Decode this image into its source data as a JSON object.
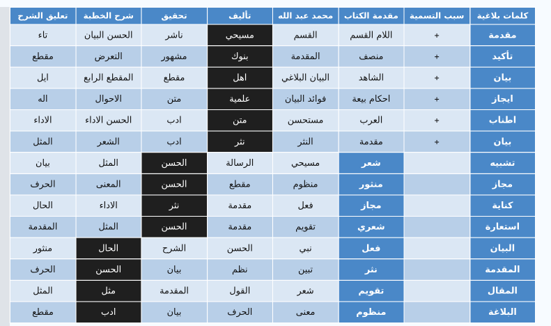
{
  "table": {
    "headers": [
      "كلمات بلاغية",
      "سبب التسمية",
      "مقدمة الكتاب",
      "محمد عبد الله",
      "تأليف",
      "تحقيق",
      "شرح الخطبة",
      "تعليق الشرح"
    ],
    "rows": [
      [
        "مقدمة",
        "+",
        "اللام القسم",
        "القسم",
        "مسيحي",
        "ناشر",
        "الحسن البيان",
        "تاء"
      ],
      [
        "تأكيد",
        "+",
        "منصف",
        "المقدمة",
        "بنوك",
        "مشهور",
        "التعرض",
        "مقطع"
      ],
      [
        "بيان",
        "+",
        "الشاهد",
        "البيان البلاغي",
        "اهل",
        "مقطع",
        "المقطع الرابع",
        "ايل"
      ],
      [
        "ايجاز",
        "+",
        "احكام بيعة",
        "فوائد البيان",
        "علمية",
        "متن",
        "الاحوال",
        "اله"
      ],
      [
        "اطناب",
        "+",
        "العرب",
        "مستحسن",
        "متن",
        "ادب",
        "الحسن الاداء",
        "الاداء"
      ],
      [
        "بيان",
        "+",
        "مقدمة",
        "النثر",
        "نثر",
        "ادب",
        "الشعر",
        "المثل"
      ],
      [
        "تشبيه",
        "",
        "شعر",
        "مسيحي",
        "الرسالة",
        "الحسن",
        "المثل",
        "بيان"
      ],
      [
        "مجاز",
        "",
        "منثور",
        "منظوم",
        "مقطع",
        "الحسن",
        "المعنى",
        "الحرف"
      ],
      [
        "كناية",
        "",
        "مجاز",
        "فعل",
        "مقدمة",
        "نثر",
        "الاداء",
        "الحال"
      ],
      [
        "استعارة",
        "",
        "شعري",
        "تقويم",
        "مقدمة",
        "الحسن",
        "المثل",
        "المقدمة"
      ],
      [
        "البيان",
        "",
        "فعل",
        "نبي",
        "الحسن",
        "الشرح",
        "الحال",
        "منثور"
      ],
      [
        "المقدمة",
        "",
        "نثر",
        "تبين",
        "نظم",
        "بيان",
        "الحسن",
        "الحرف"
      ],
      [
        "المقال",
        "",
        "تقويم",
        "شعر",
        "القول",
        "المقدمة",
        "مثل",
        "المثل"
      ],
      [
        "البلاغة",
        "",
        "منظوم",
        "معنى",
        "الحرف",
        "بيان",
        "ادب",
        "مقطع"
      ]
    ]
  },
  "colors": {
    "header": "#4a88c8",
    "row_light": "#dbe7f4",
    "row_dark": "#b8cfe8",
    "cell_dark": "#1f1f1f"
  }
}
